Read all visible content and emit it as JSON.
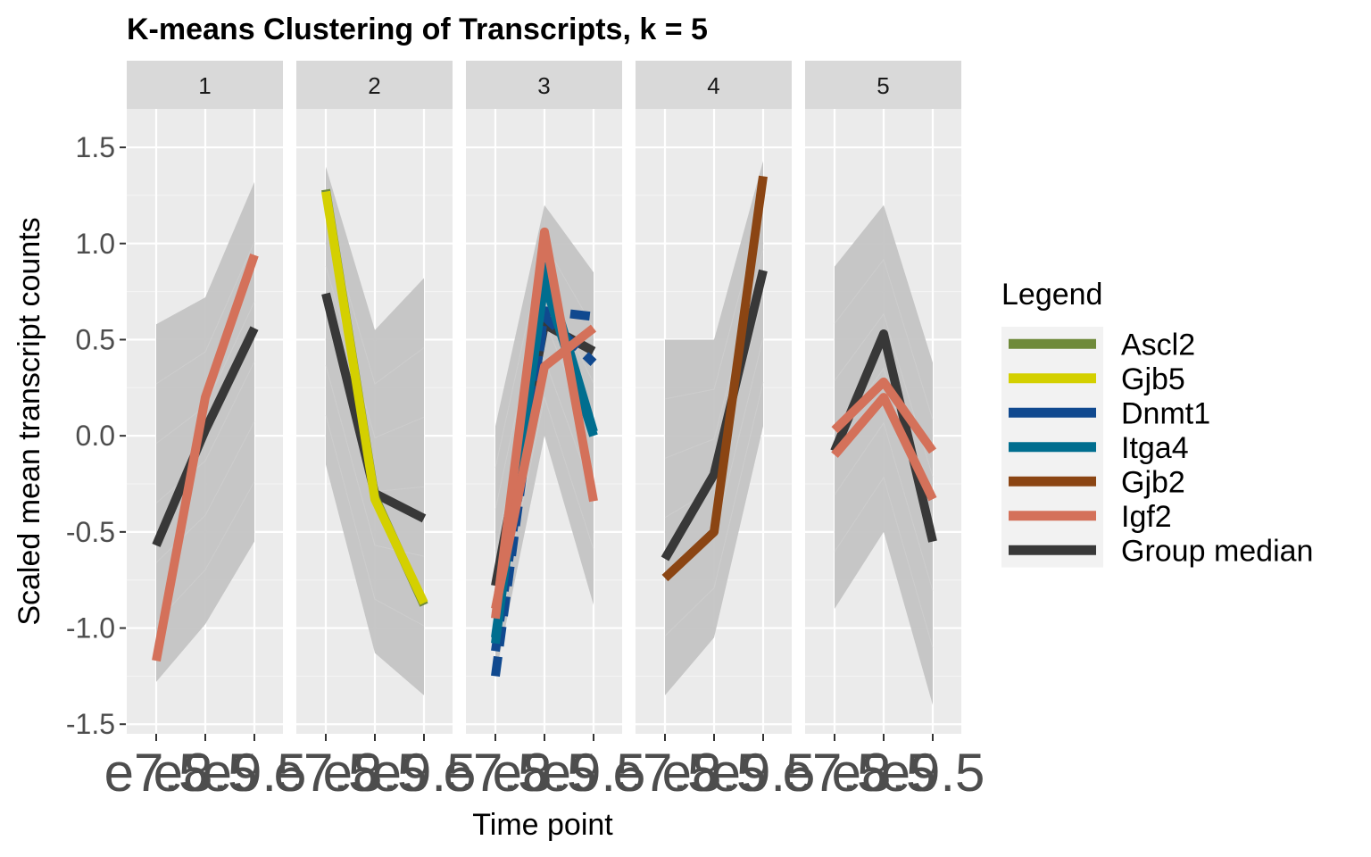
{
  "chart_data": {
    "type": "line",
    "title": "K-means Clustering of Transcripts, k = 5",
    "xlabel": "Time point",
    "ylabel": "Scaled mean transcript counts",
    "x": [
      "e7.5",
      "e8.5",
      "e9.5"
    ],
    "ylim": [
      -1.55,
      1.7
    ],
    "yticks": [
      1.5,
      1.0,
      0.5,
      0.0,
      -0.5,
      -1.0,
      -1.5
    ],
    "ytick_labels": [
      "1.5",
      "1.0",
      "0.5",
      "0.0",
      "-0.5",
      "-1.0",
      "-1.5"
    ],
    "grid": true,
    "legend": {
      "title": "Legend",
      "position": "right",
      "entries": [
        {
          "name": "Ascl2",
          "color": "#6f8a3a"
        },
        {
          "name": "Gjb5",
          "color": "#d4d000"
        },
        {
          "name": "Dnmt1",
          "color": "#10498f"
        },
        {
          "name": "Itga4",
          "color": "#006e8f"
        },
        {
          "name": "Gjb2",
          "color": "#8b4513"
        },
        {
          "name": "Igf2",
          "color": "#d4715a"
        },
        {
          "name": "Group median",
          "color": "#383838"
        }
      ]
    },
    "background_band_color": "#c4c4c4",
    "panels": [
      {
        "label": "1",
        "band_upper": [
          0.58,
          0.72,
          1.32
        ],
        "band_lower": [
          -1.28,
          -0.98,
          -0.55
        ],
        "series": [
          {
            "name": "Group median",
            "values": [
              -0.57,
              0.03,
              0.56
            ]
          },
          {
            "name": "Igf2",
            "values": [
              -1.17,
              0.2,
              0.94
            ]
          }
        ]
      },
      {
        "label": "2",
        "band_upper": [
          1.4,
          0.55,
          0.82
        ],
        "band_lower": [
          -0.15,
          -1.13,
          -1.35
        ],
        "series": [
          {
            "name": "Group median",
            "values": [
              0.74,
              -0.3,
              -0.43
            ]
          },
          {
            "name": "Ascl2",
            "values": [
              1.28,
              -0.32,
              -0.88
            ]
          },
          {
            "name": "Gjb5",
            "values": [
              1.27,
              -0.33,
              -0.87
            ]
          }
        ]
      },
      {
        "label": "3",
        "band_upper": [
          0.05,
          1.2,
          0.85
        ],
        "band_lower": [
          -1.25,
          0.0,
          -0.88
        ],
        "series": [
          {
            "name": "Group median",
            "values": [
              -0.78,
              0.58,
              0.44
            ]
          },
          {
            "name": "Dnmt1",
            "values": [
              -1.25,
              0.65,
              0.62
            ],
            "dashed": true
          },
          {
            "name": "Dnmt1",
            "values": [
              -1.12,
              0.62,
              0.38
            ],
            "dashed": true
          },
          {
            "name": "Itga4",
            "values": [
              -1.08,
              0.88,
              0.02
            ]
          },
          {
            "name": "Itga4",
            "values": [
              -1.05,
              0.8,
              0.0
            ]
          },
          {
            "name": "Igf2",
            "values": [
              -0.95,
              1.06,
              -0.34
            ]
          },
          {
            "name": "Igf2",
            "values": [
              -0.9,
              0.36,
              0.56
            ]
          }
        ]
      },
      {
        "label": "4",
        "band_upper": [
          0.5,
          0.5,
          1.43
        ],
        "band_lower": [
          -1.35,
          -1.05,
          0.05
        ],
        "series": [
          {
            "name": "Group median",
            "values": [
              -0.64,
              -0.2,
              0.86
            ]
          },
          {
            "name": "Gjb2",
            "values": [
              -0.74,
              -0.5,
              1.35
            ]
          }
        ]
      },
      {
        "label": "5",
        "band_upper": [
          0.88,
          1.2,
          0.38
        ],
        "band_lower": [
          -0.9,
          -0.5,
          -1.4
        ],
        "series": [
          {
            "name": "Group median",
            "values": [
              -0.08,
              0.53,
              -0.55
            ]
          },
          {
            "name": "Igf2",
            "values": [
              0.03,
              0.28,
              -0.08
            ]
          },
          {
            "name": "Igf2",
            "values": [
              -0.1,
              0.2,
              -0.33
            ]
          }
        ]
      }
    ]
  }
}
